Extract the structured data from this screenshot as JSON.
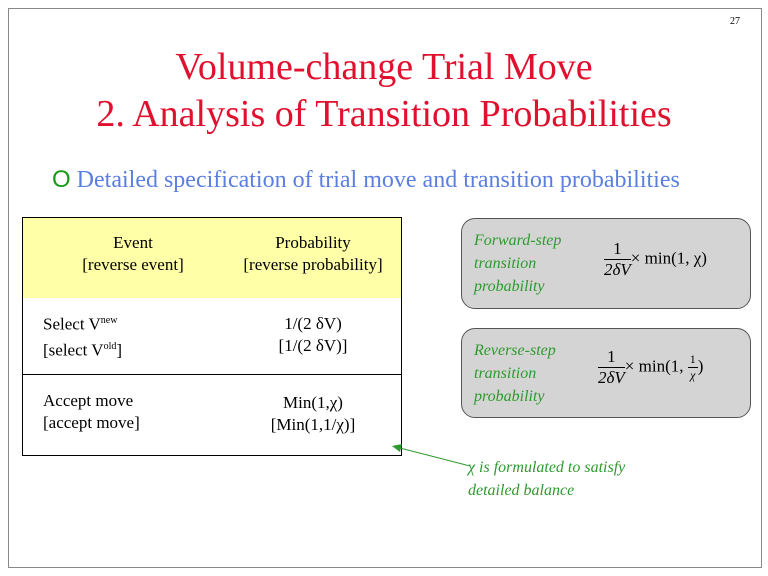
{
  "page_number": "27",
  "title": {
    "line1": "Volume-change Trial Move",
    "line2": "2. Analysis of Transition Probabilities"
  },
  "bullet": {
    "marker": "O",
    "text": "Detailed specification of trial move and transition probabilities"
  },
  "table": {
    "header": [
      [
        "Event",
        "[reverse event]"
      ],
      [
        "Probability",
        "[reverse probability]"
      ]
    ],
    "rows": [
      [
        {
          "line1": "Select V",
          "line1_sup": "new",
          "line2": "[select V",
          "line2_sup": "old",
          "line2_end": "]"
        },
        {
          "line1": "1/(2 δV)",
          "line2": "[1/(2 δV)]"
        }
      ],
      [
        {
          "line1": "Accept move",
          "line2": "[accept move]"
        },
        {
          "line1": "Min(1,χ)",
          "line2": "[Min(1,1/χ)]"
        }
      ]
    ]
  },
  "boxes": [
    {
      "label": [
        "Forward-step",
        "transition",
        "probability"
      ],
      "formula": {
        "num": "1",
        "den": "2δV",
        "rest": "× min(1, χ)"
      }
    },
    {
      "label": [
        "Reverse-step",
        "transition",
        "probability"
      ],
      "formula": {
        "num": "1",
        "den": "2δV",
        "rest": "× min(1, ",
        "inner_num": "1",
        "inner_den": "χ",
        "close": ")"
      }
    }
  ],
  "annotation": [
    "χ is formulated to satisfy",
    "detailed balance"
  ]
}
